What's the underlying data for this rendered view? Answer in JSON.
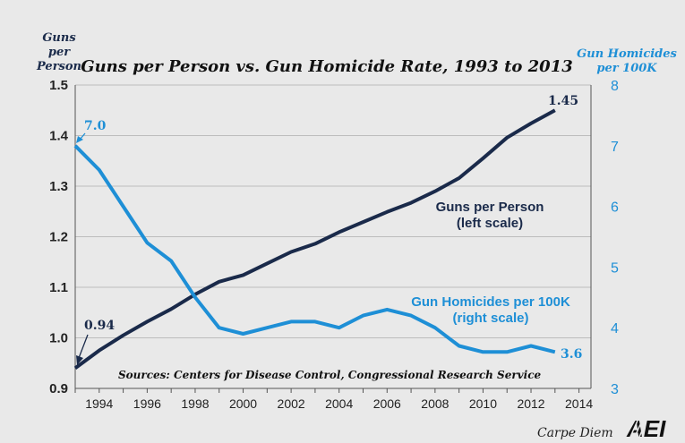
{
  "chart_data": {
    "type": "line",
    "title": "Guns per Person vs. Gun Homicide Rate, 1993 to 2013",
    "left_axis_label": [
      "Guns",
      "per",
      "Person"
    ],
    "right_axis_label": [
      "Gun Homicides",
      "per 100K"
    ],
    "ylim_left": [
      0.9,
      1.5
    ],
    "ylim_right": [
      3,
      8
    ],
    "xlim": [
      1993,
      2014.5
    ],
    "x_ticks": [
      "1994",
      "1996",
      "1998",
      "2000",
      "2002",
      "2004",
      "2006",
      "2008",
      "2010",
      "2012",
      "2014"
    ],
    "x_tick_values": [
      1994,
      1996,
      1998,
      2000,
      2002,
      2004,
      2006,
      2008,
      2010,
      2012,
      2014
    ],
    "y_ticks_left": [
      "0.9",
      "1.0",
      "1.1",
      "1.2",
      "1.3",
      "1.4",
      "1.5"
    ],
    "y_tick_values_left": [
      0.9,
      1.0,
      1.1,
      1.2,
      1.3,
      1.4,
      1.5
    ],
    "y_ticks_right": [
      "3",
      "4",
      "5",
      "6",
      "7",
      "8"
    ],
    "y_tick_values_right": [
      3,
      4,
      5,
      6,
      7,
      8
    ],
    "grid": "horizontal",
    "x": [
      1993,
      1994,
      1995,
      1996,
      1997,
      1998,
      1999,
      2000,
      2001,
      2002,
      2003,
      2004,
      2005,
      2006,
      2007,
      2008,
      2009,
      2010,
      2011,
      2012,
      2013
    ],
    "series": [
      {
        "name": "Guns per Person",
        "axis": "left",
        "color": "#1a2a4a",
        "values": [
          0.94,
          0.975,
          1.005,
          1.032,
          1.057,
          1.086,
          1.111,
          1.124,
          1.147,
          1.17,
          1.186,
          1.209,
          1.229,
          1.249,
          1.267,
          1.29,
          1.316,
          1.355,
          1.396,
          1.424,
          1.45
        ]
      },
      {
        "name": "Gun Homicides per 100K",
        "axis": "right",
        "color": "#1e8fd6",
        "values": [
          7.0,
          6.6,
          6.0,
          5.4,
          5.1,
          4.5,
          4.0,
          3.9,
          4.0,
          4.1,
          4.1,
          4.0,
          4.2,
          4.3,
          4.2,
          4.0,
          3.7,
          3.6,
          3.6,
          3.7,
          3.6
        ]
      }
    ],
    "series_labels": {
      "guns": [
        "Guns per Person",
        "(left scale)"
      ],
      "homicides": [
        "Gun Homicides per 100K",
        "(right scale)"
      ]
    },
    "data_labels": {
      "guns_start": "0.94",
      "guns_end": "1.45",
      "homicides_start": "7.0",
      "homicides_end": "3.6"
    },
    "source": "Sources: Centers for Disease Control, Congressional Research Service"
  },
  "footer": {
    "credit": "Carpe Diem",
    "logo_text": "AEI"
  }
}
